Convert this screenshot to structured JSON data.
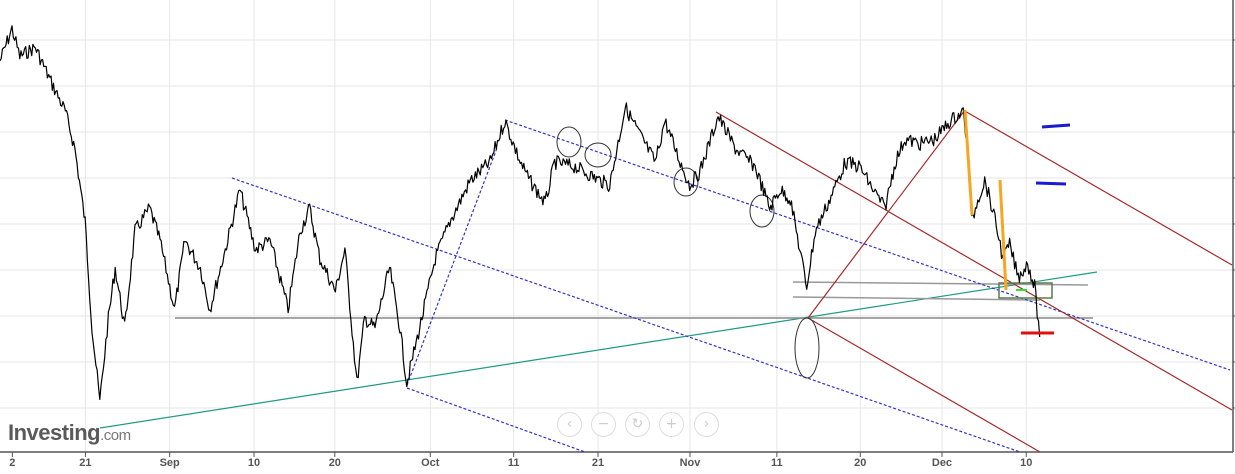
{
  "logo": {
    "brand": "Investing",
    "suffix": ".com"
  },
  "nav": {
    "prev": "‹",
    "zoom_out": "−",
    "reset": "↻",
    "zoom_in": "+",
    "next": "›"
  },
  "chart_data": {
    "type": "line",
    "title": "",
    "xlabel": "",
    "ylabel": "",
    "x_unit": "days",
    "y_unit": "relative price level (no axis labels shown)",
    "ylim": [
      0,
      9.8
    ],
    "xlim": [
      0,
      143
    ],
    "grid": true,
    "x_ticks": [
      {
        "label": "2",
        "x": 1.2
      },
      {
        "label": "21",
        "x": 9.7
      },
      {
        "label": "Sep",
        "x": 19.5
      },
      {
        "label": "10",
        "x": 29.3
      },
      {
        "label": "20",
        "x": 38.7
      },
      {
        "label": "Oct",
        "x": 49.8
      },
      {
        "label": "11",
        "x": 59.5
      },
      {
        "label": "21",
        "x": 69.3
      },
      {
        "label": "Nov",
        "x": 80
      },
      {
        "label": "11",
        "x": 90.1
      },
      {
        "label": "20",
        "x": 99.8
      },
      {
        "label": "Dec",
        "x": 109.3
      },
      {
        "label": "10",
        "x": 119.1
      }
    ],
    "series": [
      {
        "name": "price",
        "color": "#000000",
        "x": [
          0,
          1.4,
          2.3,
          4.1,
          5.8,
          7.6,
          8.7,
          9.9,
          10.7,
          11.6,
          12.6,
          13.4,
          14.5,
          15.7,
          17.4,
          18.6,
          20.3,
          21.5,
          23.3,
          24.4,
          26.2,
          27.9,
          29.7,
          31.4,
          33.5,
          34.9,
          36,
          37.2,
          39,
          40.1,
          41.5,
          42.4,
          43.6,
          45.3,
          46.5,
          47.3,
          48.8,
          50.6,
          52.3,
          54.7,
          57,
          58.7,
          60.5,
          61.6,
          63.4,
          64.5,
          66.9,
          69.8,
          70.9,
          72.7,
          74.4,
          76.2,
          77.3,
          79.1,
          80.2,
          81.4,
          83.5,
          85.5,
          87.8,
          89.5,
          90.7,
          91.9,
          93,
          93.8,
          94.8,
          96.5,
          98.3,
          100,
          101.2,
          102.9,
          104.1,
          105.2,
          107,
          108.7,
          110.5,
          112,
          112.4,
          113,
          113.7,
          114.5,
          115.1,
          116,
          116.6,
          117.4,
          118.4,
          119.5,
          120.3,
          120.9
        ],
        "values": [
          8.5,
          9.2,
          8.6,
          8.8,
          8.1,
          7.4,
          6.6,
          5.0,
          2.7,
          1.1,
          2.9,
          4.0,
          2.7,
          4.8,
          5.3,
          4.6,
          3.1,
          4.6,
          4.0,
          3.1,
          4.4,
          5.7,
          4.4,
          4.6,
          3.1,
          4.8,
          5.3,
          4.2,
          3.5,
          4.4,
          1.5,
          2.9,
          2.7,
          4.0,
          2.7,
          1.5,
          2.7,
          4.2,
          5.0,
          5.9,
          6.3,
          7.2,
          6.3,
          5.9,
          5.4,
          6.3,
          6.2,
          5.9,
          5.8,
          7.5,
          6.9,
          6.3,
          7.2,
          6.3,
          5.8,
          6.1,
          7.3,
          6.6,
          6.2,
          5.3,
          5.7,
          5.5,
          4.4,
          3.6,
          4.8,
          5.5,
          6.3,
          6.2,
          5.8,
          5.3,
          6.3,
          6.8,
          6.7,
          6.8,
          7.2,
          7.4,
          6.8,
          5.0,
          5.5,
          5.9,
          5.5,
          4.8,
          4.2,
          4.5,
          3.8,
          4.1,
          3.6,
          2.5
        ]
      }
    ]
  }
}
